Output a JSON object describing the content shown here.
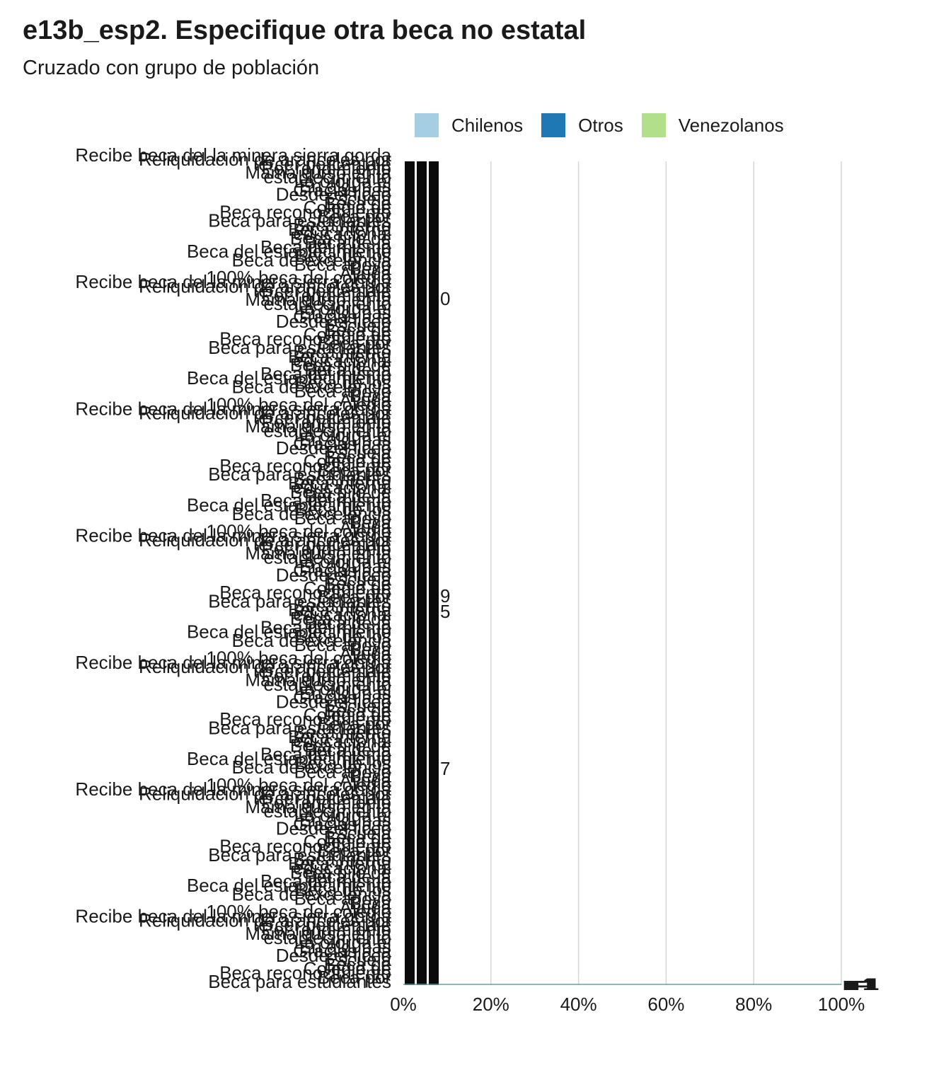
{
  "title": "e13b_esp2. Especifique otra beca no estatal",
  "subtitle": "Cruzado con grupo de población",
  "legend": [
    {
      "label": "Chilenos",
      "color": "#a6cee3"
    },
    {
      "label": "Otros",
      "color": "#1f78b4"
    },
    {
      "label": "Venezolanos",
      "color": "#b2df8a"
    }
  ],
  "chart_data": {
    "type": "bar",
    "orientation": "horizontal",
    "stacked": "percent",
    "title": "e13b_esp2. Especifique otra beca no estatal",
    "subtitle": "Cruzado con grupo de población",
    "series": [
      {
        "name": "Chilenos",
        "color": "#a6cee3"
      },
      {
        "name": "Otros",
        "color": "#1f78b4"
      },
      {
        "name": "Venezolanos",
        "color": "#b2df8a"
      }
    ],
    "xlim": [
      0,
      1
    ],
    "x_ticks": [
      "0%",
      "20%",
      "40%",
      "60%",
      "80%",
      "100%"
    ],
    "grid": "vertical",
    "legend_position": "top",
    "categories_legible": [
      "Recibe beca del la minera sierra gorda",
      "Reliquidación de aranceles por",
      "tercer porcentaje",
      "Por rendimiento",
      "Mamá cursó en la",
      "establecimiento",
      "La otorga el",
      "En algunas",
      "Gracias a la",
      "Desde el liceo",
      "Escuela",
      "Beca de",
      "Colegio de",
      "Beca reconocimiento",
      "Beca por",
      "Beca para estudiantes",
      "Beca mérito",
      "Beca interna",
      "educacional",
      "Beca hijo de",
      "Beca de la",
      "Beca del mismo",
      "Beca del establecimiento",
      "Beca de los",
      "Beca de excelencia",
      "Beca apoyo",
      "Beca",
      "Ayuda",
      "100% beca del colegio"
    ],
    "bar_labels_legible": [
      "0",
      "9",
      "5",
      "7"
    ],
    "n_labels_legible": [
      "n=",
      "1"
    ]
  }
}
